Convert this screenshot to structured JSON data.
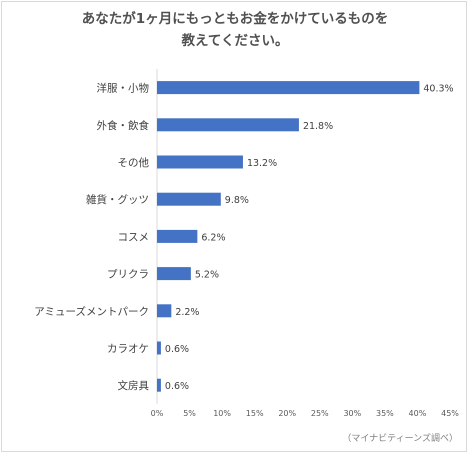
{
  "chart_data": {
    "type": "bar",
    "orientation": "horizontal",
    "title_line1": "あなたが1ヶ月にもっともお金をかけているものを",
    "title_line2": "教えてください。",
    "categories": [
      "洋服・小物",
      "外食・飲食",
      "その他",
      "雑貨・グッツ",
      "コスメ",
      "プリクラ",
      "アミューズメントパーク",
      "カラオケ",
      "文房具"
    ],
    "values": [
      40.3,
      21.8,
      13.2,
      9.8,
      6.2,
      5.2,
      2.2,
      0.6,
      0.6
    ],
    "value_labels": [
      "40.3%",
      "21.8%",
      "13.2%",
      "9.8%",
      "6.2%",
      "5.2%",
      "2.2%",
      "0.6%",
      "0.6%"
    ],
    "x_ticks": [
      "0%",
      "5%",
      "10%",
      "15%",
      "20%",
      "25%",
      "30%",
      "35%",
      "40%",
      "45%"
    ],
    "xlim": [
      0,
      45
    ],
    "bar_color": "#4472c4",
    "grid": false,
    "source": "（マイナビティーンズ調べ）"
  }
}
